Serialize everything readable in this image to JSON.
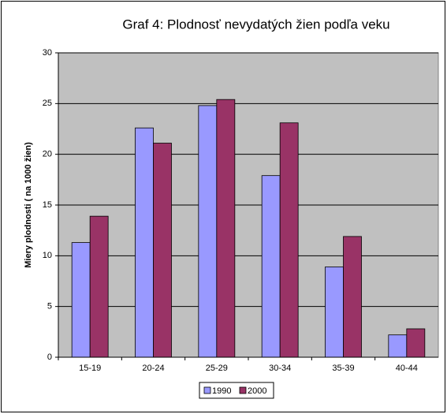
{
  "chart_data": {
    "type": "bar",
    "title": "Graf 4: Plodnosť nevydatých žien podľa veku",
    "y_label": "Miery plodnosti ( na 1000 žien)",
    "categories": [
      "15-19",
      "20-24",
      "25-29",
      "30-34",
      "35-39",
      "40-44"
    ],
    "series": [
      {
        "name": "1990",
        "color": "#9999ff",
        "values": [
          11.3,
          22.6,
          24.8,
          17.9,
          8.9,
          2.2
        ]
      },
      {
        "name": "2000",
        "color": "#993366",
        "values": [
          13.9,
          21.1,
          25.4,
          23.1,
          11.9,
          2.8
        ]
      }
    ],
    "ylim": [
      0,
      30
    ],
    "yticks": [
      0,
      5,
      10,
      15,
      20,
      25,
      30
    ],
    "grid": true,
    "legend": "bottom"
  }
}
